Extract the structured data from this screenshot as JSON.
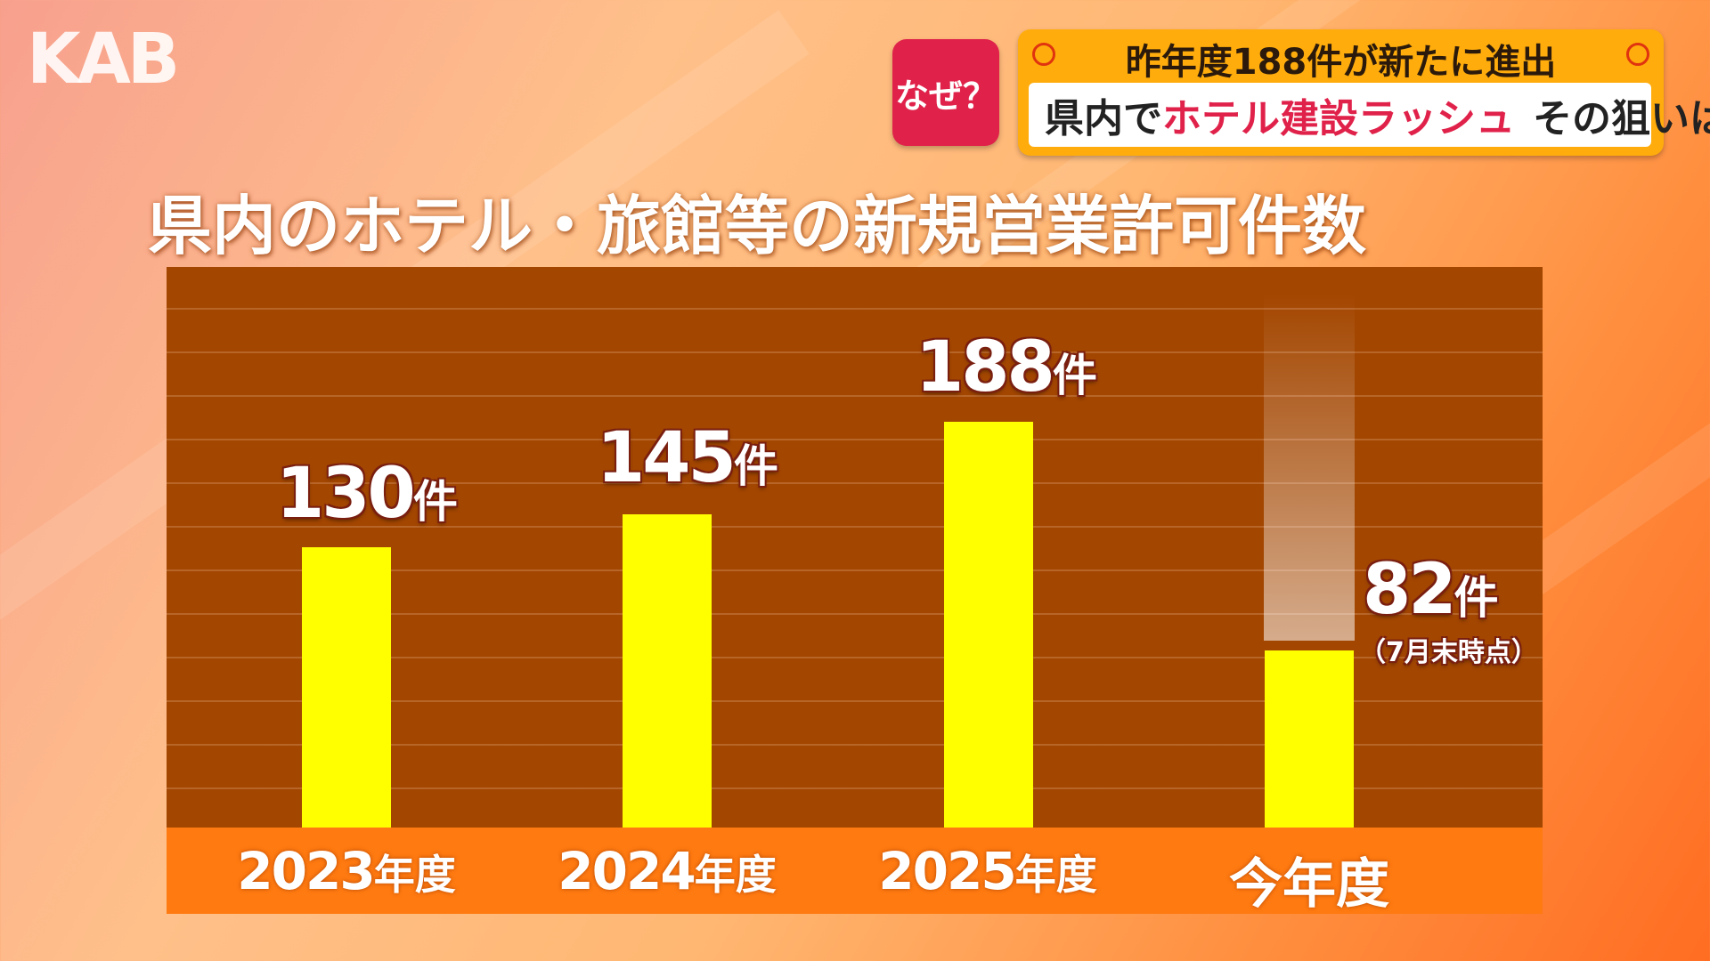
{
  "channel": {
    "logo": "KAB"
  },
  "badge": {
    "label": "なぜ？"
  },
  "headline": {
    "top": "昨年度188件が新たに進出",
    "main_part1": "県内で",
    "main_highlight": "ホテル建設ラッシュ",
    "main_part2": "その狙いは"
  },
  "colors": {
    "bar": "#ffff00",
    "plot_bg": "#a34600",
    "axis_band": "#ff7a10",
    "highlight": "#e0224a"
  },
  "chart_data": {
    "type": "bar",
    "title": "県内のホテル・旅館等の新規営業許可件数",
    "categories": [
      "2023年度",
      "2024年度",
      "2025年度",
      "今年度"
    ],
    "values": [
      130,
      145,
      188,
      82
    ],
    "value_labels": [
      {
        "number": "130",
        "unit": "件"
      },
      {
        "number": "145",
        "unit": "件"
      },
      {
        "number": "188",
        "unit": "件"
      },
      {
        "number": "82",
        "unit": "件",
        "note": "（7月末時点）"
      }
    ],
    "category_parts": [
      {
        "year": "2023",
        "suffix": "年度"
      },
      {
        "year": "2024",
        "suffix": "年度"
      },
      {
        "year": "2025",
        "suffix": "年度"
      },
      {
        "year": "",
        "suffix": "今年度"
      }
    ],
    "ylim": [
      0,
      250
    ],
    "grid": true
  }
}
